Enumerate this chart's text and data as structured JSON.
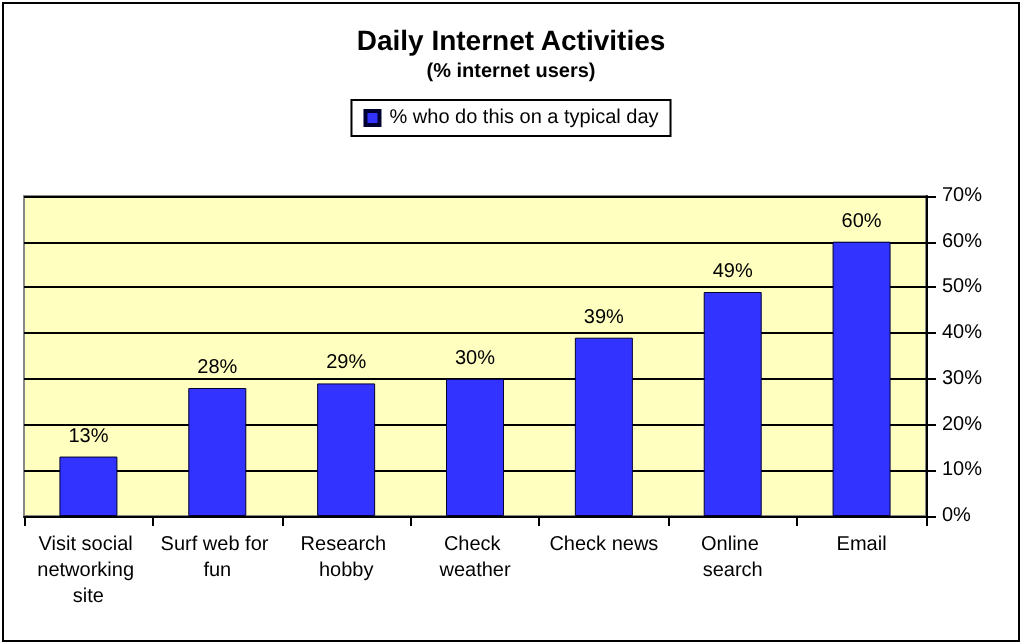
{
  "chart_data": {
    "type": "bar",
    "title": "Daily Internet Activities",
    "subtitle": "(% internet users)",
    "categories": [
      "Visit social networking site",
      "Surf web for fun",
      "Research hobby",
      "Check weather",
      "Check news",
      "Online search",
      "Email"
    ],
    "series": [
      {
        "name": "% who do this on a typical day",
        "color": "#3333ff",
        "values": [
          13,
          28,
          29,
          30,
          39,
          49,
          60
        ],
        "value_labels": [
          "13%",
          "28%",
          "29%",
          "30%",
          "39%",
          "49%",
          "60%"
        ]
      }
    ],
    "ylim": [
      0,
      70
    ],
    "yticks": [
      {
        "value": 0,
        "label": "0%"
      },
      {
        "value": 10,
        "label": "10%"
      },
      {
        "value": 20,
        "label": "20%"
      },
      {
        "value": 30,
        "label": "30%"
      },
      {
        "value": 40,
        "label": "40%"
      },
      {
        "value": 50,
        "label": "50%"
      },
      {
        "value": 60,
        "label": "60%"
      },
      {
        "value": 70,
        "label": "70%"
      }
    ],
    "grid": "y",
    "legend": "top"
  }
}
